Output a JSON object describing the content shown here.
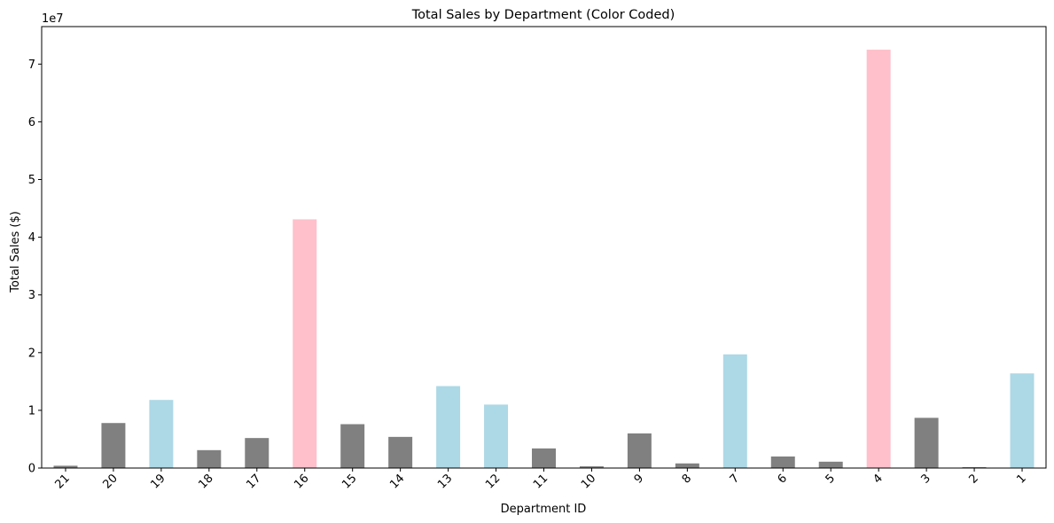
{
  "chart_data": {
    "type": "bar",
    "title": "Total Sales by Department (Color Coded)",
    "xlabel": "Department ID",
    "ylabel": "Total Sales ($)",
    "y_offset_label": "1e7",
    "categories": [
      "21",
      "20",
      "19",
      "18",
      "17",
      "16",
      "15",
      "14",
      "13",
      "12",
      "11",
      "10",
      "9",
      "8",
      "7",
      "6",
      "5",
      "4",
      "3",
      "2",
      "1"
    ],
    "values": [
      400000,
      7800000,
      11800000,
      3100000,
      5200000,
      43100000,
      7600000,
      5400000,
      14200000,
      11000000,
      3400000,
      300000,
      6000000,
      800000,
      19700000,
      2000000,
      1100000,
      72500000,
      8700000,
      150000,
      16400000
    ],
    "colors": [
      "#808080",
      "#808080",
      "#add8e6",
      "#808080",
      "#808080",
      "#ffc0cb",
      "#808080",
      "#808080",
      "#add8e6",
      "#add8e6",
      "#808080",
      "#808080",
      "#808080",
      "#808080",
      "#add8e6",
      "#808080",
      "#808080",
      "#ffc0cb",
      "#808080",
      "#808080",
      "#add8e6"
    ],
    "ylim": [
      0,
      76500000
    ],
    "yticks": [
      0,
      10000000,
      20000000,
      30000000,
      40000000,
      50000000,
      60000000,
      70000000
    ],
    "ytick_labels": [
      "0",
      "1",
      "2",
      "3",
      "4",
      "5",
      "6",
      "7"
    ],
    "grid": false,
    "legend": "none"
  }
}
